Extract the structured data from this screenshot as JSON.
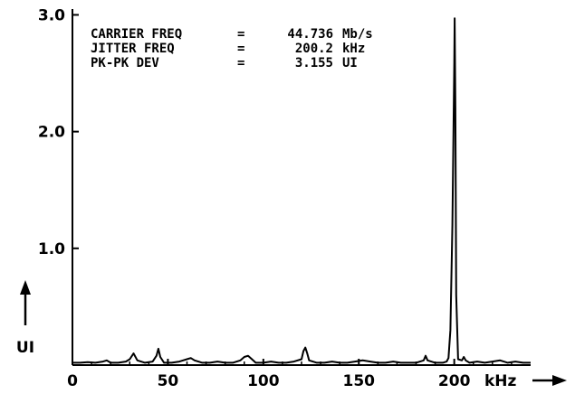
{
  "chart_data": {
    "type": "line",
    "title": "",
    "xlabel": "kHz",
    "ylabel": "UI",
    "xlim": [
      0,
      240
    ],
    "ylim": [
      0,
      3.05
    ],
    "x_ticks": [
      "0",
      "50",
      "100",
      "150",
      "200"
    ],
    "x_tick_values": [
      0,
      50,
      100,
      150,
      200
    ],
    "y_ticks": [
      "1.0",
      "2.0",
      "3.0"
    ],
    "y_tick_values": [
      1.0,
      2.0,
      3.0
    ],
    "grid": false,
    "legend": "none",
    "annotations": [
      {
        "label": "CARRIER FREQ",
        "eq": "=",
        "value": "44.736",
        "unit": "Mb/s"
      },
      {
        "label": "JITTER FREQ",
        "eq": "=",
        "value": "200.2",
        "unit": "kHz"
      },
      {
        "label": "PK-PK DEV",
        "eq": "=",
        "value": "3.155",
        "unit": "UI"
      }
    ],
    "series": [
      {
        "x": [
          0,
          4,
          8,
          12,
          16,
          18,
          20,
          24,
          28,
          30,
          32,
          34,
          38,
          42,
          44,
          45,
          46,
          48,
          52,
          56,
          60,
          62,
          64,
          68,
          72,
          76,
          80,
          84,
          88,
          90,
          92,
          94,
          96,
          100,
          104,
          108,
          112,
          116,
          120,
          121,
          122,
          123,
          124,
          128,
          132,
          136,
          140,
          144,
          148,
          152,
          156,
          160,
          164,
          168,
          172,
          176,
          180,
          184,
          185,
          186,
          190,
          194,
          196,
          197,
          198,
          199,
          200,
          200.2,
          200.6,
          201,
          202,
          204,
          205,
          206,
          208,
          212,
          216,
          220,
          224,
          228,
          232,
          236,
          240
        ],
        "y": [
          0.02,
          0.02,
          0.025,
          0.02,
          0.03,
          0.04,
          0.02,
          0.02,
          0.03,
          0.05,
          0.1,
          0.04,
          0.02,
          0.03,
          0.08,
          0.14,
          0.07,
          0.02,
          0.02,
          0.03,
          0.05,
          0.06,
          0.04,
          0.02,
          0.02,
          0.03,
          0.02,
          0.02,
          0.04,
          0.07,
          0.08,
          0.05,
          0.02,
          0.02,
          0.03,
          0.02,
          0.02,
          0.03,
          0.05,
          0.12,
          0.15,
          0.1,
          0.04,
          0.02,
          0.02,
          0.03,
          0.02,
          0.02,
          0.03,
          0.04,
          0.03,
          0.02,
          0.02,
          0.03,
          0.02,
          0.02,
          0.02,
          0.04,
          0.08,
          0.04,
          0.02,
          0.02,
          0.03,
          0.06,
          0.3,
          1.2,
          2.6,
          2.97,
          2.2,
          0.6,
          0.05,
          0.04,
          0.07,
          0.04,
          0.02,
          0.03,
          0.02,
          0.03,
          0.04,
          0.02,
          0.03,
          0.02,
          0.02
        ]
      }
    ]
  }
}
